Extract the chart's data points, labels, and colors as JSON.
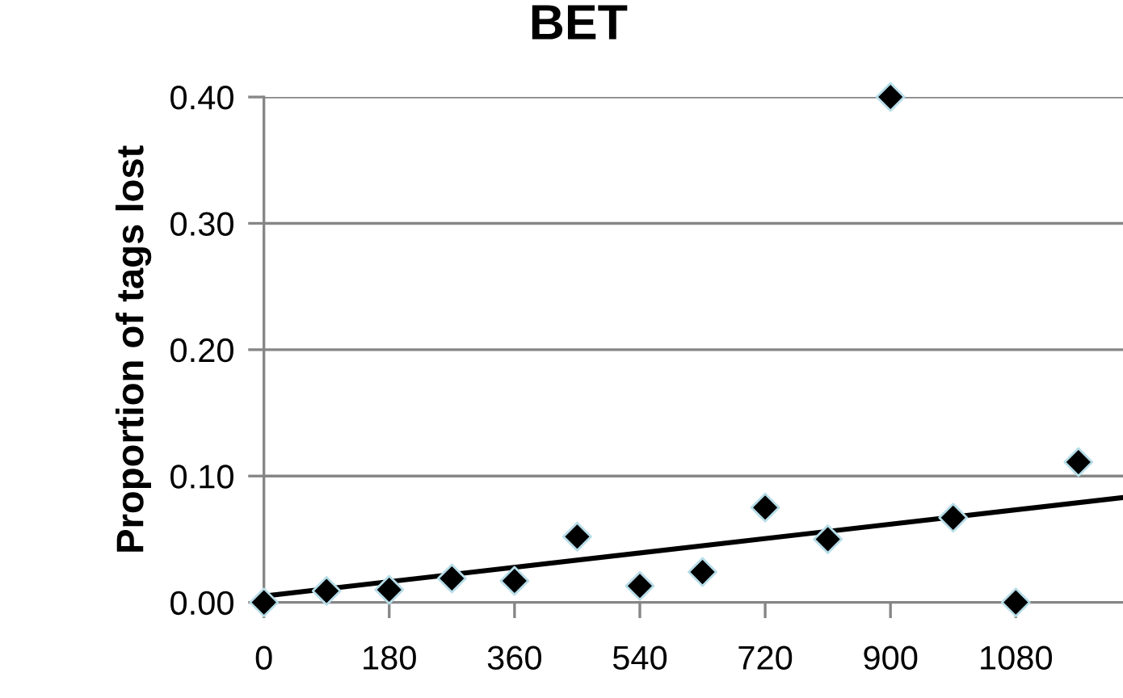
{
  "chart_data": {
    "type": "scatter",
    "title": "BET",
    "ylabel": "Proportion of tags lost",
    "x": [
      0,
      90,
      180,
      270,
      360,
      450,
      540,
      630,
      720,
      810,
      900,
      990,
      1080,
      1170
    ],
    "series": [
      {
        "color": "#000000",
        "marker": "diamond",
        "values": [
          0,
          0.009,
          0.01,
          0.019,
          0.017,
          0.052,
          0.013,
          0.024,
          0.075,
          0.05,
          0.4,
          0.067,
          0,
          0.111
        ]
      },
      {
        "type": "line",
        "color": "#000000",
        "x": [
          0,
          1234
        ],
        "values": [
          0.005,
          0.083
        ]
      }
    ],
    "xlim": [
      0,
      1234
    ],
    "ylim": [
      0,
      0.4
    ],
    "xticks": [
      0,
      180,
      360,
      540,
      720,
      900,
      1080
    ],
    "yticks": [
      {
        "value": 0,
        "label": "0.00"
      },
      {
        "value": 0.1,
        "label": "0.10"
      },
      {
        "value": 0.2,
        "label": "0.20"
      },
      {
        "value": 0.3,
        "label": "0.30"
      },
      {
        "value": 0.4,
        "label": "0.40"
      }
    ],
    "grid": "y",
    "legend": false
  }
}
